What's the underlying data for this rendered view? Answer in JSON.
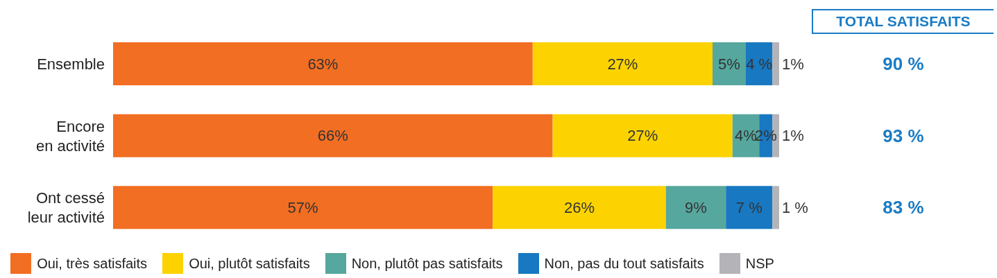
{
  "chart_data": {
    "type": "bar",
    "orientation": "horizontal",
    "stacked": true,
    "categories": [
      "Ensemble",
      "Encore en activité",
      "Ont cessé leur activité"
    ],
    "series": [
      {
        "name": "Oui, très satisfaits",
        "color": "#f26e22",
        "values": [
          63,
          66,
          57
        ],
        "value_labels": [
          "63%",
          "66%",
          "57%"
        ]
      },
      {
        "name": "Oui, plutôt satisfaits",
        "color": "#fcd300",
        "values": [
          27,
          27,
          26
        ],
        "value_labels": [
          "27%",
          "27%",
          "26%"
        ]
      },
      {
        "name": "Non, plutôt pas satisfaits",
        "color": "#56a79e",
        "values": [
          5,
          4,
          9
        ],
        "value_labels": [
          "5%",
          "4%",
          "9%"
        ]
      },
      {
        "name": "Non, pas du tout satisfaits",
        "color": "#1878c1",
        "values": [
          4,
          2,
          7
        ],
        "value_labels": [
          "4 %",
          "2%",
          "7 %"
        ]
      },
      {
        "name": "NSP",
        "color": "#b4b4b8",
        "values": [
          1,
          1,
          1
        ],
        "value_labels": [
          "1%",
          "1%",
          "1 %"
        ]
      }
    ],
    "xlim": [
      0,
      100
    ],
    "tick_labels": "y",
    "legend": "bottom",
    "grid": false,
    "annotations": [
      "TOTAL SATISFAITS",
      "90 %",
      "93 %",
      "83 %"
    ]
  }
}
